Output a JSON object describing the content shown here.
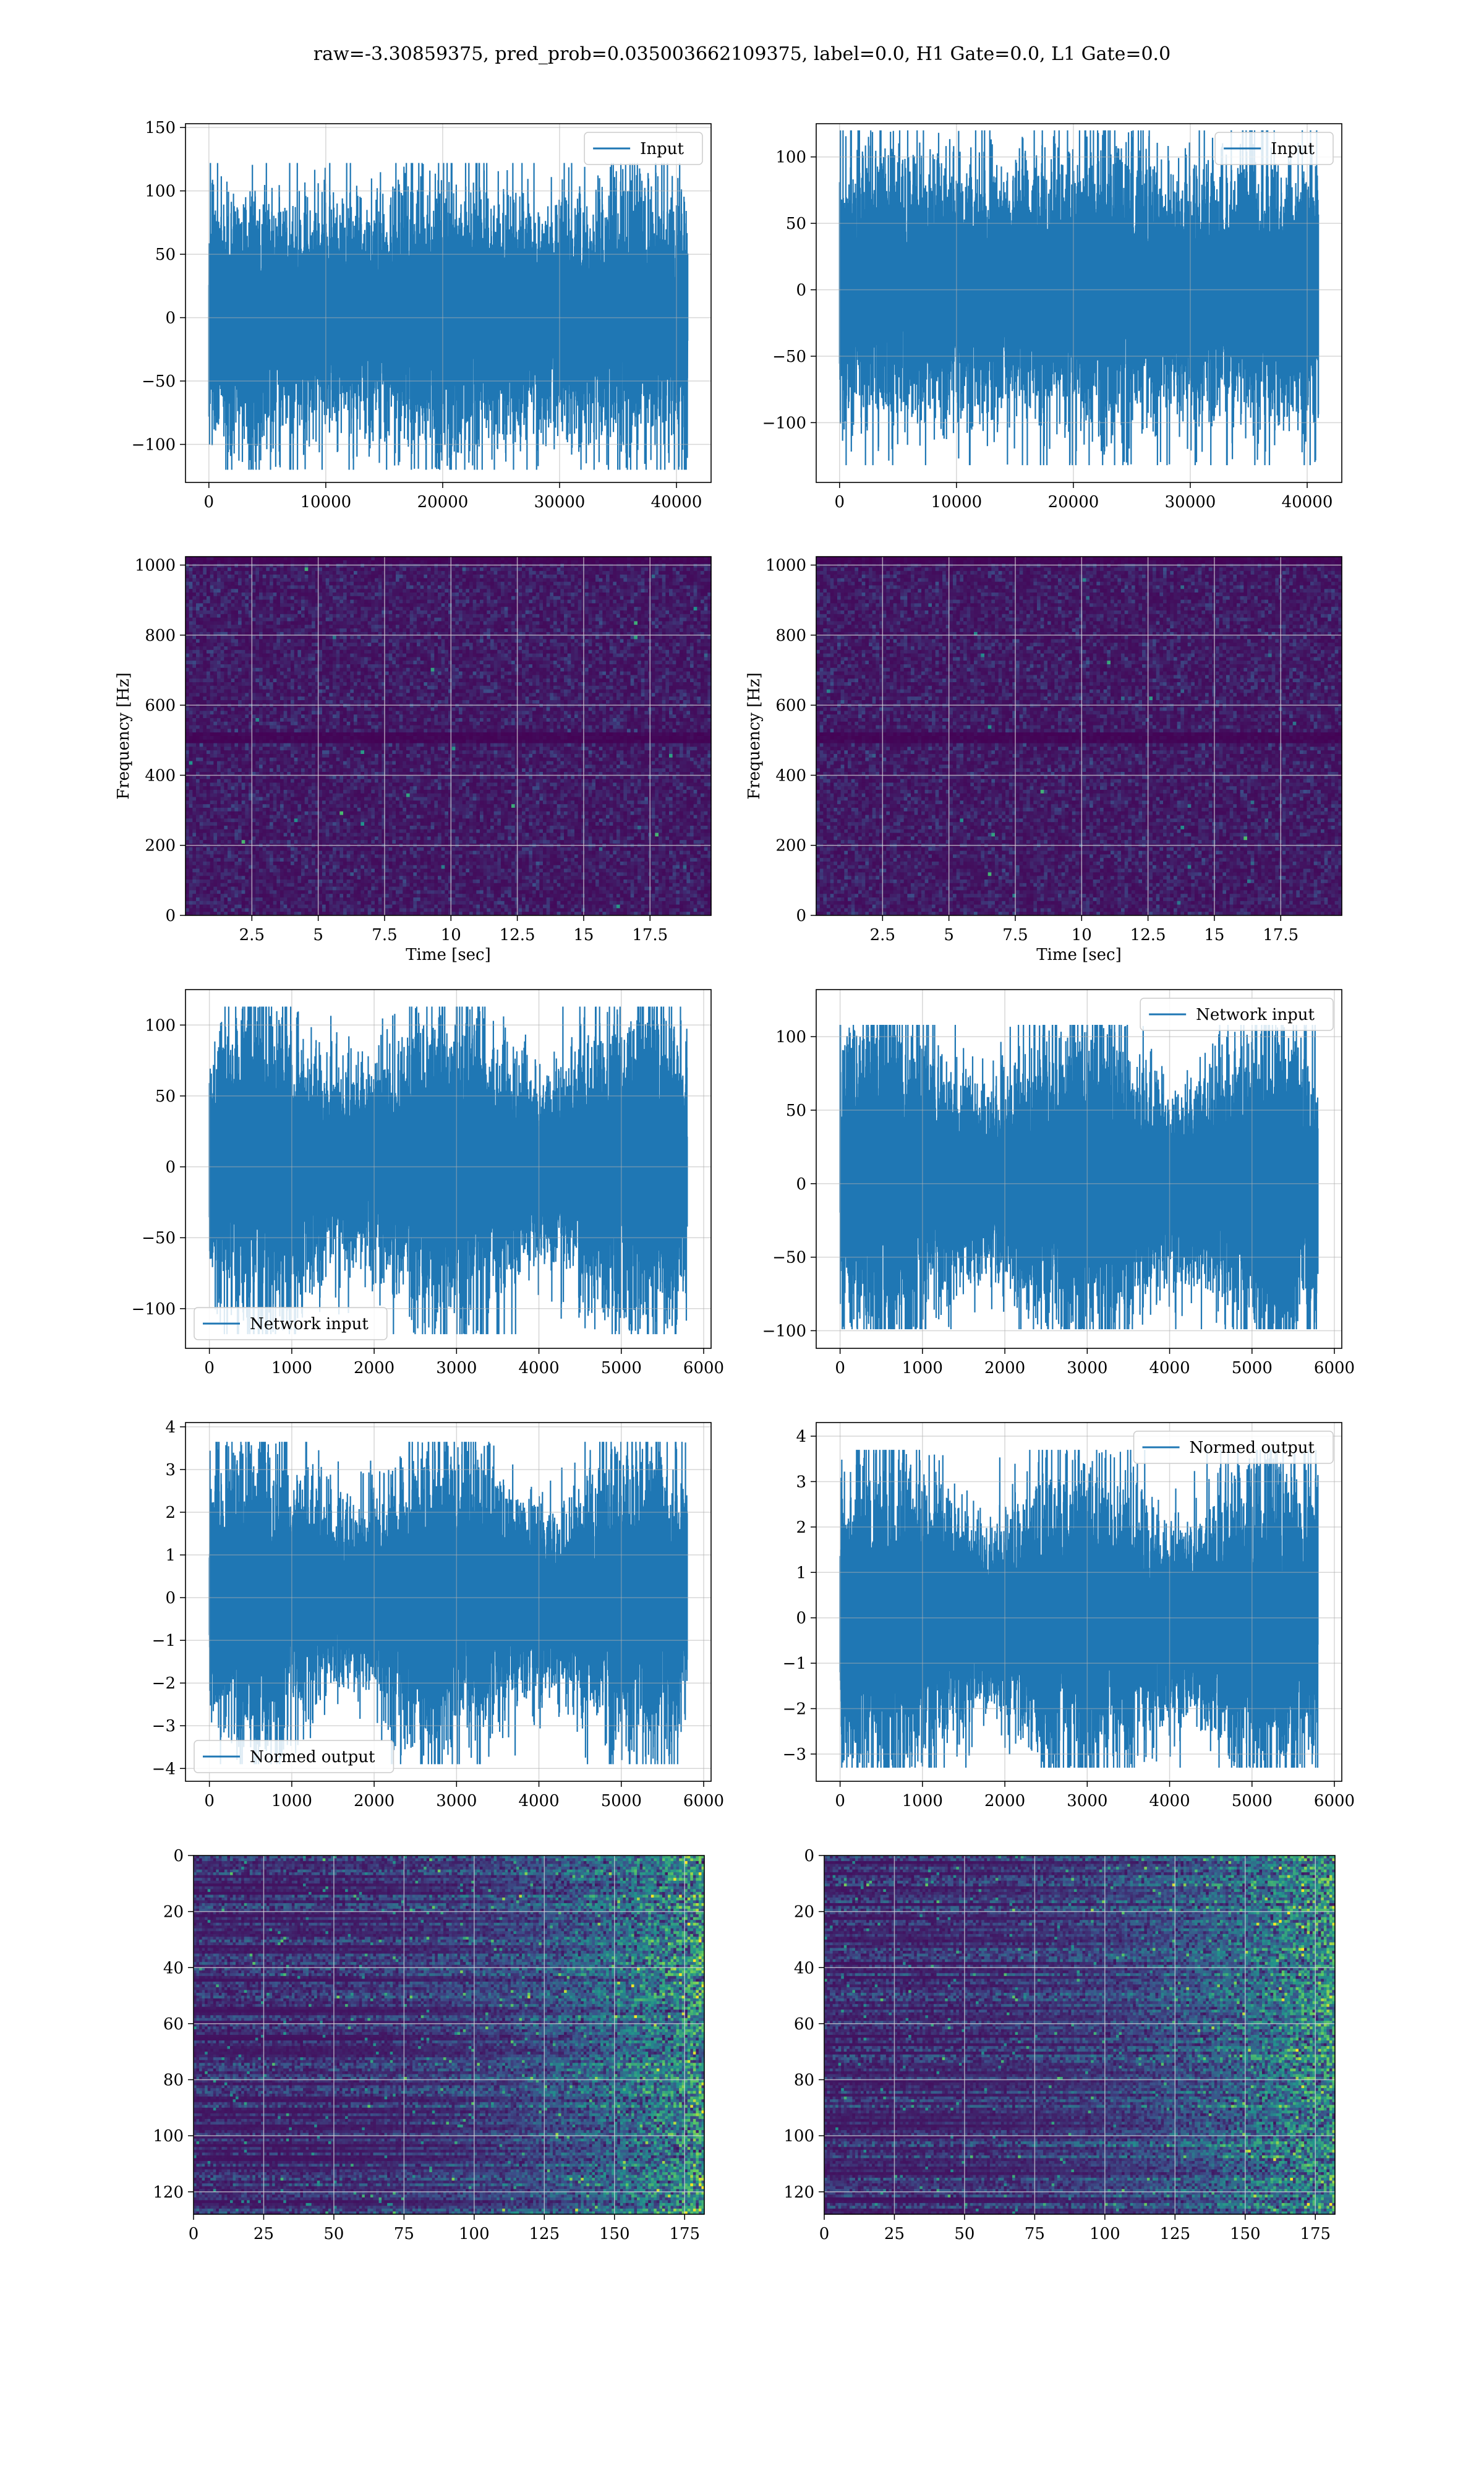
{
  "figure_title": "raw=-3.30859375, pred_prob=0.035003662109375, label=0.0, H1 Gate=0.0, L1 Gate=0.0",
  "colors": {
    "line": "#1f77b4",
    "grid": "#b0b0b0",
    "heat_low": "#440154",
    "heat_mid": "#21918c",
    "heat_high": "#fde725"
  },
  "chart_data": [
    {
      "id": "p1",
      "type": "line",
      "title": "",
      "legend": "Input",
      "legend_loc": "upper right",
      "xlabel": "",
      "ylabel": "",
      "xlim": [
        -2000,
        42960
      ],
      "ylim": [
        -130,
        153
      ],
      "n": 40960,
      "amp": 30,
      "peak": 122,
      "trough": -120,
      "xticks": [
        0,
        10000,
        20000,
        30000,
        40000
      ],
      "yticks": [
        -100,
        -50,
        0,
        50,
        100,
        150
      ],
      "grid": true
    },
    {
      "id": "p2",
      "type": "line",
      "title": "",
      "legend": "Input",
      "legend_loc": "upper right",
      "xlabel": "",
      "ylabel": "",
      "xlim": [
        -2000,
        42960
      ],
      "ylim": [
        -145,
        125
      ],
      "n": 40960,
      "amp": 30,
      "peak": 120,
      "trough": -132,
      "xticks": [
        0,
        10000,
        20000,
        30000,
        40000
      ],
      "yticks": [
        -100,
        -50,
        0,
        50,
        100
      ],
      "grid": true
    },
    {
      "id": "p3",
      "type": "heatmap",
      "title": "",
      "xlabel": "Time [sec]",
      "ylabel": "Frequency [Hz]",
      "xlim": [
        0,
        19.8
      ],
      "ylim": [
        0,
        1024
      ],
      "xticks": [
        2.5,
        5.0,
        7.5,
        10.0,
        12.5,
        15.0,
        17.5
      ],
      "yticks": [
        0,
        200,
        400,
        600,
        800,
        1000
      ],
      "grid": true
    },
    {
      "id": "p4",
      "type": "heatmap",
      "title": "",
      "xlabel": "Time [sec]",
      "ylabel": "Frequency [Hz]",
      "xlim": [
        0,
        19.8
      ],
      "ylim": [
        0,
        1024
      ],
      "xticks": [
        2.5,
        5.0,
        7.5,
        10.0,
        12.5,
        15.0,
        17.5
      ],
      "yticks": [
        0,
        200,
        400,
        600,
        800,
        1000
      ],
      "grid": true
    },
    {
      "id": "p5",
      "type": "line",
      "title": "",
      "legend": "Network input",
      "legend_loc": "lower left",
      "xlabel": "",
      "ylabel": "",
      "xlim": [
        -290,
        6090
      ],
      "ylim": [
        -128,
        125
      ],
      "n": 5800,
      "amp": 28,
      "peak": 113,
      "trough": -118,
      "xticks": [
        0,
        1000,
        2000,
        3000,
        4000,
        5000,
        6000
      ],
      "yticks": [
        -100,
        -50,
        0,
        50,
        100
      ],
      "grid": true
    },
    {
      "id": "p6",
      "type": "line",
      "title": "",
      "legend": "Network input",
      "legend_loc": "upper right",
      "xlabel": "",
      "ylabel": "",
      "xlim": [
        -290,
        6090
      ],
      "ylim": [
        -112,
        132
      ],
      "n": 5800,
      "amp": 28,
      "peak": 108,
      "trough": -99,
      "xticks": [
        0,
        1000,
        2000,
        3000,
        4000,
        5000,
        6000
      ],
      "yticks": [
        -100,
        -50,
        0,
        50,
        100
      ],
      "grid": true
    },
    {
      "id": "p7",
      "type": "line",
      "title": "",
      "legend": "Normed output",
      "legend_loc": "lower left",
      "xlabel": "",
      "ylabel": "",
      "xlim": [
        -290,
        6090
      ],
      "ylim": [
        -4.3,
        4.1
      ],
      "n": 5800,
      "amp": 0.9,
      "peak": 3.65,
      "trough": -3.9,
      "xticks": [
        0,
        1000,
        2000,
        3000,
        4000,
        5000,
        6000
      ],
      "yticks": [
        -4,
        -3,
        -2,
        -1,
        0,
        1,
        2,
        3,
        4
      ],
      "grid": true
    },
    {
      "id": "p8",
      "type": "line",
      "title": "",
      "legend": "Normed output",
      "legend_loc": "upper right",
      "xlabel": "",
      "ylabel": "",
      "xlim": [
        -290,
        6090
      ],
      "ylim": [
        -3.6,
        4.3
      ],
      "n": 5800,
      "amp": 0.9,
      "peak": 3.7,
      "trough": -3.3,
      "xticks": [
        0,
        1000,
        2000,
        3000,
        4000,
        5000,
        6000
      ],
      "yticks": [
        -3,
        -2,
        -1,
        0,
        1,
        2,
        3,
        4
      ],
      "grid": true
    },
    {
      "id": "p9",
      "type": "heatmap",
      "title": "",
      "xlabel": "",
      "ylabel": "",
      "xlim": [
        0,
        182
      ],
      "ylim": [
        128,
        0
      ],
      "inverted": true,
      "xticks": [
        0,
        25,
        50,
        75,
        100,
        125,
        150,
        175
      ],
      "yticks": [
        0,
        20,
        40,
        60,
        80,
        100,
        120
      ],
      "grid": true
    },
    {
      "id": "p10",
      "type": "heatmap",
      "title": "",
      "xlabel": "",
      "ylabel": "",
      "xlim": [
        0,
        182
      ],
      "ylim": [
        128,
        0
      ],
      "inverted": true,
      "xticks": [
        0,
        25,
        50,
        75,
        100,
        125,
        150,
        175
      ],
      "yticks": [
        0,
        20,
        40,
        60,
        80,
        100,
        120
      ],
      "grid": true
    }
  ]
}
